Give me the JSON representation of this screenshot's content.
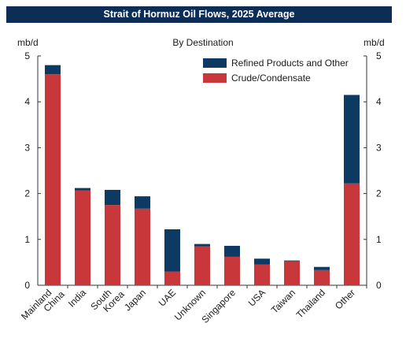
{
  "colors": {
    "title_bg": "#0d2d57",
    "refined": "#0d3a63",
    "crude": "#c8383a"
  },
  "chart_data": {
    "type": "bar",
    "stacked": true,
    "title": "Strait of Hormuz Oil Flows, 2025 Average",
    "subtitle": "By Destination",
    "ylabel_left": "mb/d",
    "ylabel_right": "mb/d",
    "ylim": [
      0,
      5
    ],
    "yticks": [
      "0",
      "1",
      "2",
      "3",
      "4",
      "5"
    ],
    "categories": [
      "Mainland China",
      "India",
      "South Korea",
      "Japan",
      "UAE",
      "Unknown",
      "Singapore",
      "USA",
      "Taiwan",
      "Thailand",
      "Other"
    ],
    "category_lines": [
      [
        "Mainland",
        "China"
      ],
      [
        "India"
      ],
      [
        "South",
        "Korea"
      ],
      [
        "Japan"
      ],
      [
        "UAE"
      ],
      [
        "Unknown"
      ],
      [
        "Singapore"
      ],
      [
        "USA"
      ],
      [
        "Taiwan"
      ],
      [
        "Thailand"
      ],
      [
        "Other"
      ]
    ],
    "series": [
      {
        "name": "Crude/Condensate",
        "color": "#c8383a",
        "values": [
          4.6,
          2.07,
          1.75,
          1.67,
          0.3,
          0.85,
          0.62,
          0.45,
          0.52,
          0.33,
          2.22
        ]
      },
      {
        "name": "Refined Products and Other",
        "color": "#0d3a63",
        "values": [
          0.2,
          0.05,
          0.33,
          0.27,
          0.92,
          0.05,
          0.24,
          0.13,
          0.02,
          0.07,
          1.93
        ]
      }
    ],
    "legend": [
      "Refined Products and Other",
      "Crude/Condensate"
    ],
    "legend_position": "top-right",
    "grid": false
  }
}
